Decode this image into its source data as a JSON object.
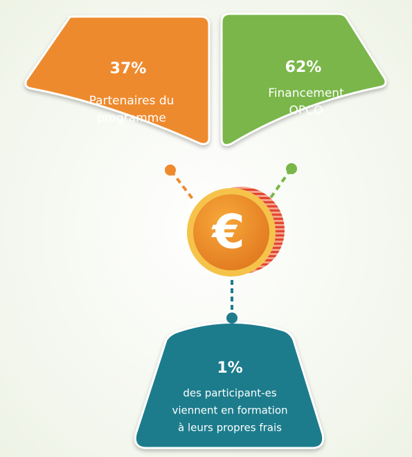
{
  "nodes": [
    {
      "value": "37%",
      "label": [
        "Partenaires du",
        "programme"
      ]
    },
    {
      "value": "62%",
      "label": [
        "Financement",
        "OPCO"
      ]
    },
    {
      "value": "1%",
      "label": [
        "des participant-es",
        "viennent en formation",
        "à leurs propres frais"
      ]
    }
  ],
  "coin": {
    "symbol": "€"
  }
}
